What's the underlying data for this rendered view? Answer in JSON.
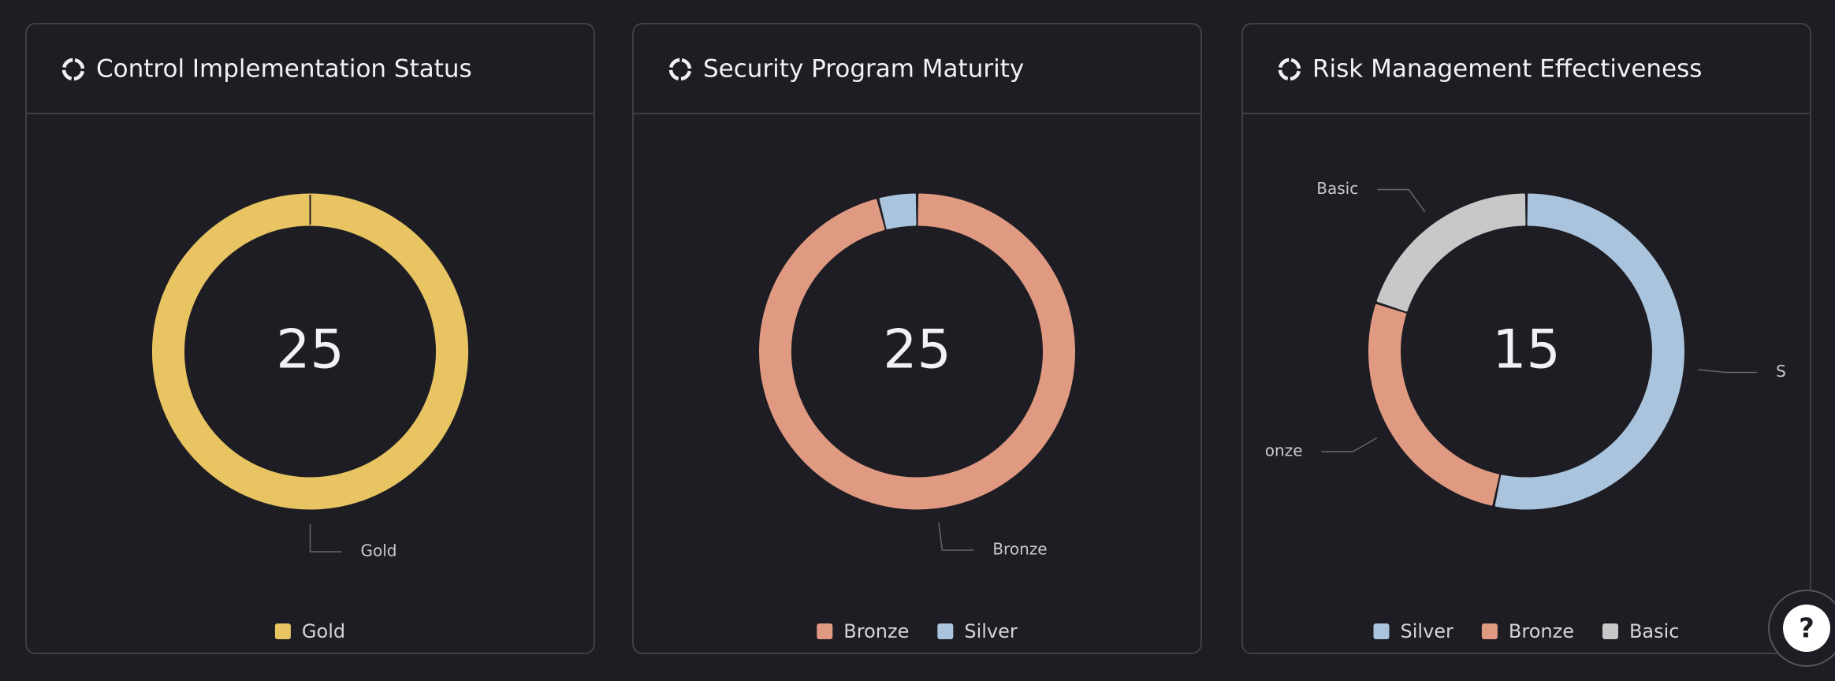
{
  "chart_data": [
    {
      "type": "donut",
      "title": "Control Implementation Status",
      "total": 25,
      "categories": [
        "Gold"
      ],
      "values": [
        25
      ],
      "colors": [
        "#e8c462"
      ],
      "legend": "bottom"
    },
    {
      "type": "donut",
      "title": "Security Program Maturity",
      "total": 25,
      "categories": [
        "Bronze",
        "Silver"
      ],
      "values": [
        24,
        1
      ],
      "colors": [
        "#e09a82",
        "#a9c4dc"
      ],
      "legend": "bottom"
    },
    {
      "type": "donut",
      "title": "Risk Management Effectiveness",
      "total": 15,
      "categories": [
        "Silver",
        "Bronze",
        "Basic"
      ],
      "values": [
        8,
        4,
        3
      ],
      "colors": [
        "#a9c4dc",
        "#e09a82",
        "#c8c8c8"
      ],
      "legend": "bottom"
    }
  ],
  "help_button": "?"
}
